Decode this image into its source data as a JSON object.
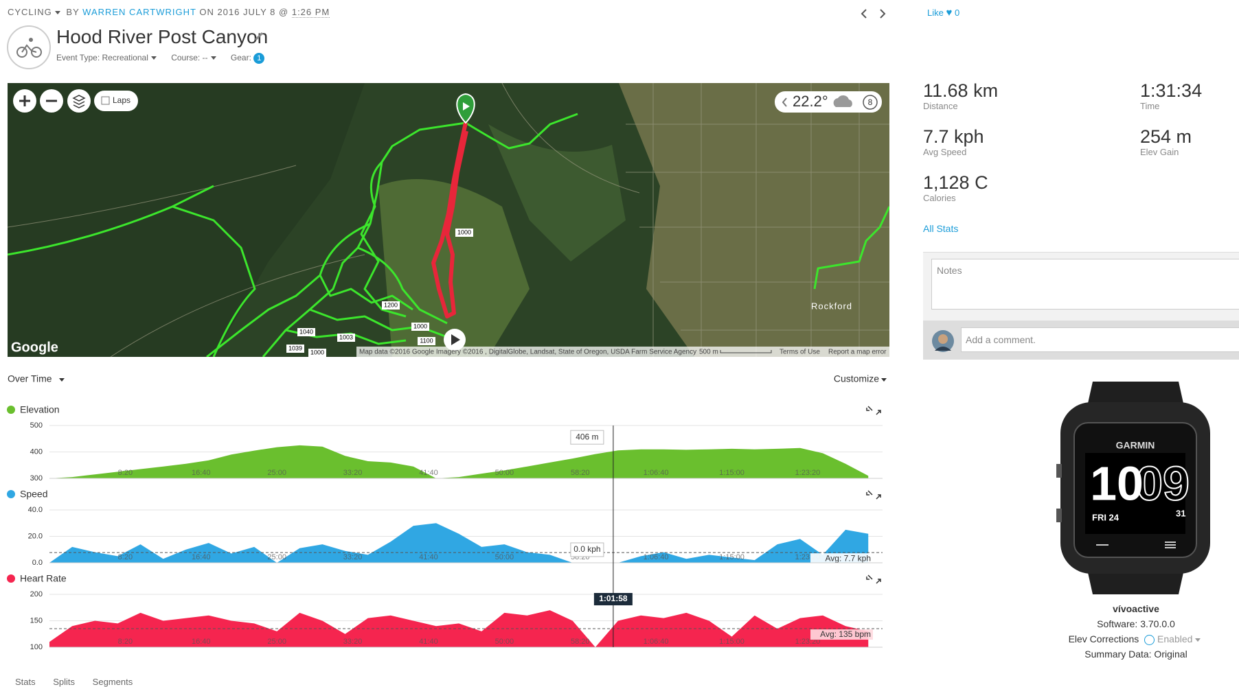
{
  "header": {
    "activity_type": "CYCLING",
    "by": "BY",
    "author": "WARREN CARTWRIGHT",
    "date": "ON 2016 JULY 8 @",
    "time": "1:26 PM",
    "title": "Hood River Post Canyon",
    "event_type": "Event Type: Recreational",
    "course": "Course: --",
    "gear": "Gear:",
    "gear_count": 1,
    "like": "Like",
    "like_count": 0
  },
  "map": {
    "laps": "Laps",
    "temperature": "22.2°",
    "badge": 8,
    "place": "Rockford",
    "logo": "Google",
    "attribution": "Map data ©2016 Google Imagery ©2016 , DigitalGlobe, Landsat, State of Oregon, USDA Farm Service Agency",
    "scale": "500 m",
    "terms": "Terms of Use",
    "report": "Report a map error",
    "markers": [
      "1000",
      "1200",
      "1040",
      "1039",
      "1003",
      "1000",
      "1100",
      "1000"
    ]
  },
  "chart_controls": {
    "view": "Over Time",
    "customize": "Customize"
  },
  "chart_data": [
    {
      "type": "area",
      "title": "Elevation",
      "color": "#6abf2e",
      "x": [
        0,
        150,
        300,
        450,
        600,
        750,
        900,
        1050,
        1200,
        1350,
        1500,
        1650,
        1800,
        1950,
        2100,
        2250,
        2400,
        2550,
        2700,
        2850,
        3000,
        3150,
        3300,
        3450,
        3600,
        3750,
        3900,
        4050,
        4200,
        4350,
        4500,
        4650,
        4800,
        4950,
        5100,
        5250,
        5400
      ],
      "values": [
        300,
        305,
        315,
        325,
        335,
        345,
        355,
        368,
        390,
        405,
        418,
        425,
        420,
        385,
        365,
        360,
        345,
        300,
        305,
        318,
        330,
        345,
        360,
        375,
        392,
        406,
        410,
        410,
        408,
        410,
        412,
        410,
        412,
        415,
        395,
        355,
        310
      ],
      "xlim": [
        0,
        5494
      ],
      "ylim": [
        300,
        500
      ],
      "yticks": [
        300,
        400,
        500
      ],
      "xticks": [
        {
          "value": 500,
          "label": "8:20"
        },
        {
          "value": 1000,
          "label": "16:40"
        },
        {
          "value": 1500,
          "label": "25:00"
        },
        {
          "value": 2000,
          "label": "33:20"
        },
        {
          "value": 2500,
          "label": "41:40"
        },
        {
          "value": 3000,
          "label": "50:00"
        },
        {
          "value": 3500,
          "label": "58:20"
        },
        {
          "value": 4000,
          "label": "1:06:40"
        },
        {
          "value": 4500,
          "label": "1:15:00"
        },
        {
          "value": 5000,
          "label": "1:23:20"
        }
      ],
      "tooltip": {
        "value": 406,
        "label": "406 m"
      }
    },
    {
      "type": "area",
      "title": "Speed",
      "color": "#30a7e3",
      "x": [
        0,
        150,
        300,
        450,
        600,
        750,
        900,
        1050,
        1200,
        1350,
        1500,
        1650,
        1800,
        1950,
        2100,
        2250,
        2400,
        2550,
        2700,
        2850,
        3000,
        3150,
        3300,
        3450,
        3600,
        3750,
        3900,
        4050,
        4200,
        4350,
        4500,
        4650,
        4800,
        4950,
        5100,
        5250,
        5400
      ],
      "values": [
        0,
        12,
        8,
        5,
        14,
        3,
        10,
        15,
        7,
        12,
        0,
        11,
        14,
        9,
        6,
        16,
        28,
        30,
        22,
        12,
        14,
        8,
        6,
        0,
        0,
        0,
        5,
        8,
        3,
        6,
        4,
        2,
        14,
        18,
        6,
        25,
        22
      ],
      "xlim": [
        0,
        5494
      ],
      "ylim": [
        0,
        40
      ],
      "yticks": [
        {
          "value": 0,
          "label": "0.0"
        },
        {
          "value": 20,
          "label": "20.0"
        },
        {
          "value": 40,
          "label": "40.0"
        }
      ],
      "xticks": [
        {
          "value": 500,
          "label": "8:20"
        },
        {
          "value": 1000,
          "label": "16:40"
        },
        {
          "value": 1500,
          "label": "25:00"
        },
        {
          "value": 2000,
          "label": "33:20"
        },
        {
          "value": 2500,
          "label": "41:40"
        },
        {
          "value": 3000,
          "label": "50:00"
        },
        {
          "value": 3500,
          "label": "58:20"
        },
        {
          "value": 4000,
          "label": "1:06:40"
        },
        {
          "value": 4500,
          "label": "1:15:00"
        },
        {
          "value": 5000,
          "label": "1:23:20"
        }
      ],
      "tooltip": {
        "value": 0,
        "label": "0.0 kph"
      },
      "avg": {
        "value": 7.7,
        "label": "Avg: 7.7 kph"
      }
    },
    {
      "type": "area",
      "title": "Heart Rate",
      "color": "#f5254f",
      "x": [
        0,
        150,
        300,
        450,
        600,
        750,
        900,
        1050,
        1200,
        1350,
        1500,
        1650,
        1800,
        1950,
        2100,
        2250,
        2400,
        2550,
        2700,
        2850,
        3000,
        3150,
        3300,
        3450,
        3600,
        3750,
        3900,
        4050,
        4200,
        4350,
        4500,
        4650,
        4800,
        4950,
        5100,
        5250,
        5400
      ],
      "values": [
        110,
        140,
        150,
        145,
        165,
        150,
        155,
        160,
        150,
        145,
        130,
        165,
        150,
        125,
        155,
        160,
        150,
        140,
        145,
        130,
        165,
        160,
        170,
        150,
        100,
        150,
        160,
        155,
        165,
        150,
        120,
        160,
        135,
        155,
        160,
        140,
        130
      ],
      "xlim": [
        0,
        5494
      ],
      "ylim": [
        100,
        200
      ],
      "yticks": [
        100,
        150,
        200
      ],
      "xticks": [
        {
          "value": 500,
          "label": "8:20"
        },
        {
          "value": 1000,
          "label": "16:40"
        },
        {
          "value": 1500,
          "label": "25:00"
        },
        {
          "value": 2000,
          "label": "33:20"
        },
        {
          "value": 2500,
          "label": "41:40"
        },
        {
          "value": 3000,
          "label": "50:00"
        },
        {
          "value": 3500,
          "label": "58:20"
        },
        {
          "value": 4000,
          "label": "1:06:40"
        },
        {
          "value": 4500,
          "label": "1:15:00"
        },
        {
          "value": 5000,
          "label": "1:23:20"
        }
      ],
      "avg": {
        "value": 135,
        "label": "Avg: 135 bpm"
      },
      "cursor": {
        "value": 3718,
        "label": "1:01:58"
      }
    }
  ],
  "stats": [
    {
      "value": "11.68 km",
      "label": "Distance"
    },
    {
      "value": "1:31:34",
      "label": "Time"
    },
    {
      "value": "7.7 kph",
      "label": "Avg Speed"
    },
    {
      "value": "254 m",
      "label": "Elev Gain"
    },
    {
      "value": "1,128 C",
      "label": "Calories"
    }
  ],
  "all_stats": "All Stats",
  "notes_placeholder": "Notes",
  "comment_placeholder": "Add a comment.",
  "device": {
    "face_brand": "GARMIN",
    "face_hour": "10",
    "face_minute": "09",
    "face_day": "FRI 24",
    "face_date": "31",
    "name": "vívoactive",
    "software": "Software: 3.70.0.0",
    "elev_corrections": "Elev Corrections",
    "elev_status": "Enabled",
    "summary": "Summary Data: Original"
  },
  "tabs": [
    "Stats",
    "Splits",
    "Segments"
  ]
}
